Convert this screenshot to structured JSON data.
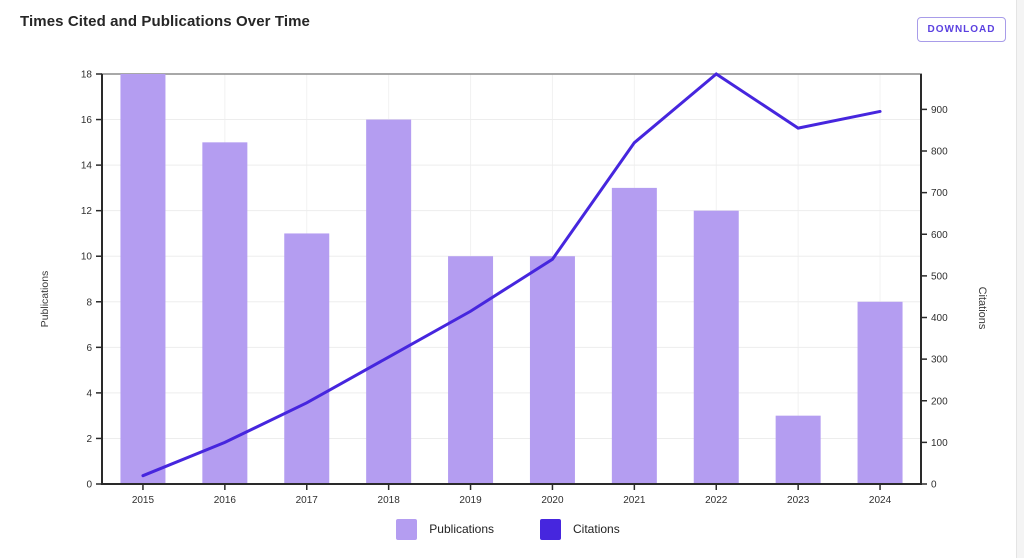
{
  "header": {
    "title": "Times Cited and Publications Over Time",
    "download_label": "DOWNLOAD"
  },
  "colors": {
    "bar": "#b49df1",
    "line": "#4626de",
    "accent_text": "#5b41e0",
    "button_border": "#a89ce9",
    "axis_line": "#2a2a2a",
    "plot_top_border": "#8c8c8c",
    "grid_horizontal": "#ededed",
    "grid_vertical": "#f2f2f2",
    "tick_text": "#2f2f2f",
    "axis_title_text": "#3a3a3a"
  },
  "legend": [
    {
      "label": "Publications",
      "color": "#b49df1"
    },
    {
      "label": "Citations",
      "color": "#4626de"
    }
  ],
  "chart_data": {
    "type": "bar",
    "subtype": "bar-and-line-dual-axis",
    "title": "Times Cited and Publications Over Time",
    "categories": [
      "2015",
      "2016",
      "2017",
      "2018",
      "2019",
      "2020",
      "2021",
      "2022",
      "2023",
      "2024"
    ],
    "series": [
      {
        "name": "Publications",
        "type": "bar",
        "axis": "left",
        "values": [
          18,
          15,
          11,
          16,
          10,
          10,
          13,
          12,
          3,
          8
        ]
      },
      {
        "name": "Citations",
        "type": "line",
        "axis": "right",
        "values": [
          20,
          100,
          195,
          305,
          415,
          540,
          820,
          985,
          855,
          895
        ]
      }
    ],
    "left_axis": {
      "label": "Publications",
      "min": 0,
      "max": 18,
      "ticks": [
        0,
        2,
        4,
        6,
        8,
        10,
        12,
        14,
        16,
        18
      ]
    },
    "right_axis": {
      "label": "Citations",
      "min": 0,
      "max": 985,
      "ticks": [
        0,
        100,
        200,
        300,
        400,
        500,
        600,
        700,
        800,
        900
      ]
    },
    "grid": true,
    "legend_position": "bottom"
  }
}
